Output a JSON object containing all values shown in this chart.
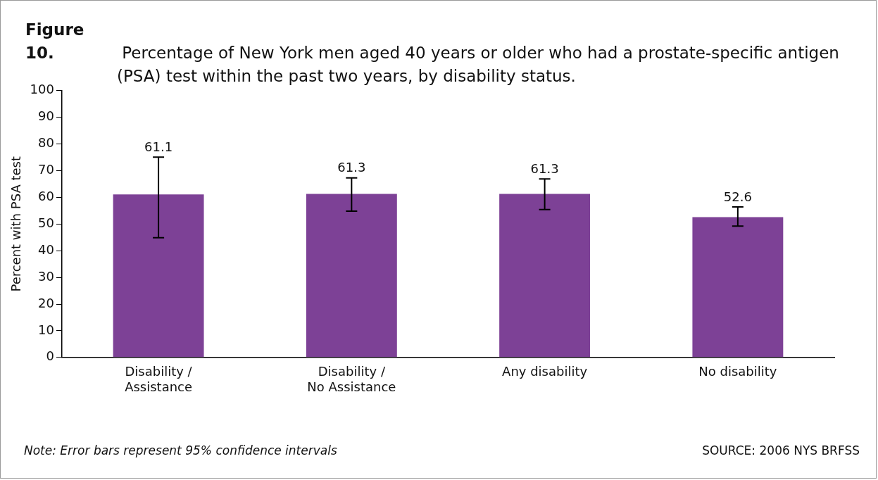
{
  "chart_data": {
    "type": "bar",
    "title": "Figure 10. Percentage of New York men aged 40 years or older who had a prostate-specific antigen (PSA) test within the past two years, by disability status.",
    "ylabel": "Percent with PSA test",
    "categories": [
      "Disability / Assistance",
      "Disability / No Assistance",
      "Any disability",
      "No disability"
    ],
    "values": [
      61.1,
      61.3,
      61.3,
      52.6
    ],
    "errors": [
      [
        44.9,
        75.1
      ],
      [
        54.8,
        67.3
      ],
      [
        55.4,
        66.9
      ],
      [
        49.2,
        56.4
      ]
    ],
    "color": "#7d4196",
    "ylim": [
      0,
      100
    ],
    "yticks": [
      0,
      10,
      20,
      30,
      40,
      50,
      60,
      70,
      80,
      90,
      100
    ],
    "grid": false,
    "legend": false,
    "data_labels": true,
    "annotations": [
      "Note: Error bars represent 95% confidence intervals",
      "SOURCE: 2006 NYS BRFSS"
    ]
  }
}
